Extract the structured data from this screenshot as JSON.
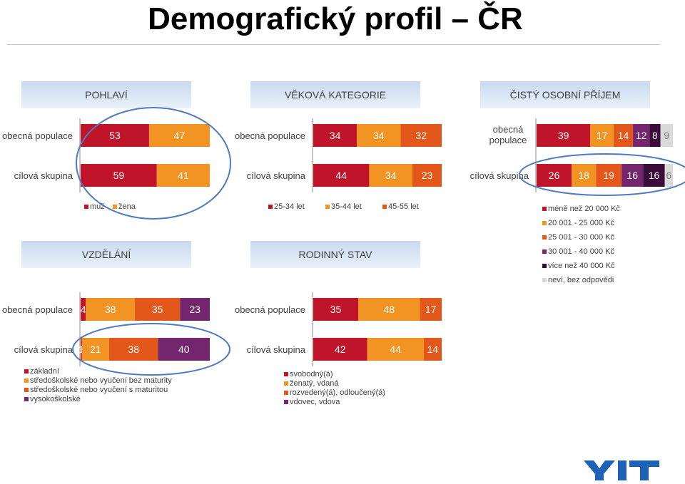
{
  "title": "Demografický profil – ČR",
  "colors": {
    "red": "#c0142a",
    "orange": "#f29423",
    "darkorange": "#e3581a",
    "purple": "#73266e",
    "darkpurple": "#3b0b3b",
    "grey": "#d9d9d9"
  },
  "logo": "YIT",
  "chart_data": [
    {
      "type": "bar",
      "orientation": "horizontal",
      "stacked": true,
      "title": "POHLAVÍ",
      "categories": [
        "obecná populace",
        "cílová skupina"
      ],
      "series": [
        {
          "name": "muž",
          "values": [
            53,
            59
          ],
          "color": "#c0142a"
        },
        {
          "name": "žena",
          "values": [
            47,
            41
          ],
          "color": "#f29423"
        }
      ]
    },
    {
      "type": "bar",
      "orientation": "horizontal",
      "stacked": true,
      "title": "VĚKOVÁ KATEGORIE",
      "categories": [
        "obecná populace",
        "cílová skupina"
      ],
      "series": [
        {
          "name": "25-34 let",
          "values": [
            34,
            44
          ],
          "color": "#c0142a"
        },
        {
          "name": "35-44 let",
          "values": [
            34,
            34
          ],
          "color": "#f29423"
        },
        {
          "name": "45-55 let",
          "values": [
            32,
            23
          ],
          "color": "#e3581a"
        }
      ]
    },
    {
      "type": "bar",
      "orientation": "horizontal",
      "stacked": true,
      "title": "ČISTÝ OSOBNÍ PŘÍJEM",
      "categories": [
        "obecná populace",
        "cílová skupina"
      ],
      "series": [
        {
          "name": "méně než 20 000 Kč",
          "values": [
            39,
            26
          ],
          "color": "#c0142a"
        },
        {
          "name": "20 001 - 25 000 Kč",
          "values": [
            17,
            18
          ],
          "color": "#f29423"
        },
        {
          "name": "25 001 - 30 000 Kč",
          "values": [
            14,
            19
          ],
          "color": "#e3581a"
        },
        {
          "name": "30 001 - 40 000 Kč",
          "values": [
            12,
            16
          ],
          "color": "#73266e"
        },
        {
          "name": "více než 40 000 Kč",
          "values": [
            8,
            16
          ],
          "color": "#3b0b3b"
        },
        {
          "name": "neví, bez odpovědi",
          "values": [
            9,
            6
          ],
          "color": "#d9d9d9"
        }
      ]
    },
    {
      "type": "bar",
      "orientation": "horizontal",
      "stacked": true,
      "title": "VZDĚLÁNÍ",
      "categories": [
        "obecná populace",
        "cílová skupina"
      ],
      "series": [
        {
          "name": "základní",
          "values": [
            4,
            1
          ],
          "color": "#c0142a"
        },
        {
          "name": "středoškolské nebo vyučení bez maturity",
          "values": [
            38,
            21
          ],
          "color": "#f29423"
        },
        {
          "name": "středoškolské nebo vyučení s maturitou",
          "values": [
            35,
            38
          ],
          "color": "#e3581a"
        },
        {
          "name": "vysokoškolské",
          "values": [
            23,
            40
          ],
          "color": "#73266e"
        }
      ]
    },
    {
      "type": "bar",
      "orientation": "horizontal",
      "stacked": true,
      "title": "RODINNÝ STAV",
      "categories": [
        "obecná populace",
        "cílová skupina"
      ],
      "series": [
        {
          "name": "svobodný(á)",
          "values": [
            35,
            42
          ],
          "color": "#c0142a"
        },
        {
          "name": "ženatý, vdaná",
          "values": [
            48,
            44
          ],
          "color": "#f29423"
        },
        {
          "name": "rozvedený(á), odloučený(á)",
          "values": [
            17,
            14
          ],
          "color": "#e3581a"
        },
        {
          "name": "vdovec, vdova",
          "values": [
            0,
            0
          ],
          "color": "#73266e"
        }
      ]
    }
  ]
}
